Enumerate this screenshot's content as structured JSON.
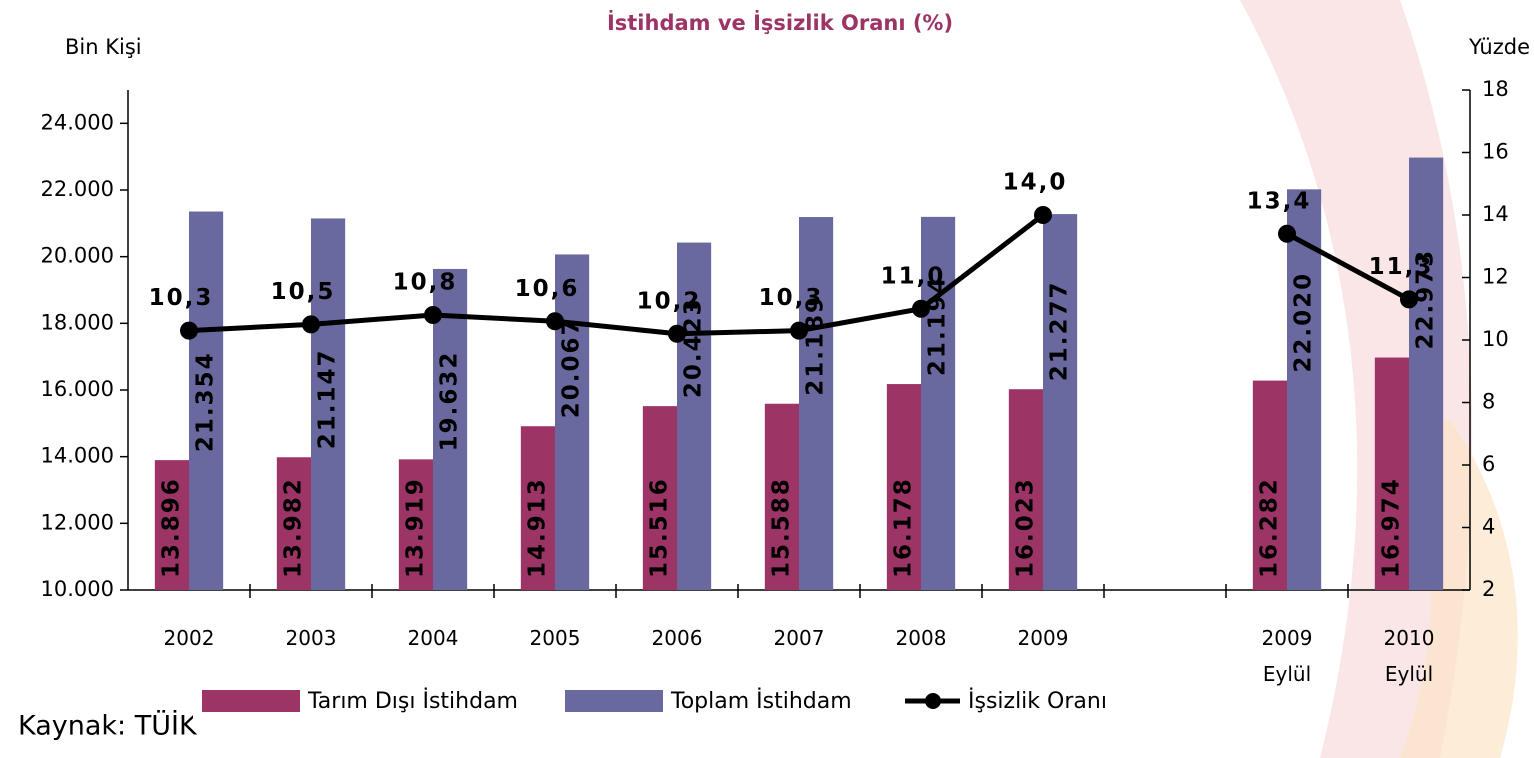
{
  "chart_data": {
    "type": "bar",
    "title": "İstihdam ve İşsizlik Oranı (%)",
    "y_label": "Bin Kişi",
    "y2_label": "Yüzde",
    "source": "Kaynak: TÜİK",
    "categories": [
      "2002",
      "2003",
      "2004",
      "2005",
      "2006",
      "2007",
      "2008",
      "2009",
      null,
      "2009\nEylül",
      "2010\nEylül"
    ],
    "series": [
      {
        "name": "Tarım Dışı İstihdam",
        "type": "bar",
        "color": "#9c3466",
        "values": [
          13896,
          13982,
          13919,
          14913,
          15516,
          15588,
          16178,
          16023,
          null,
          16282,
          16974
        ],
        "value_labels": [
          "13.896",
          "13.982",
          "13.919",
          "14.913",
          "15.516",
          "15.588",
          "16.178",
          "16.023",
          null,
          "16.282",
          "16.974"
        ]
      },
      {
        "name": "Toplam İstihdam",
        "type": "bar",
        "color": "#6a699f",
        "values": [
          21354,
          21147,
          19632,
          20067,
          20423,
          21189,
          21194,
          21277,
          null,
          22020,
          22973
        ],
        "value_labels": [
          "21.354",
          "21.147",
          "19.632",
          "20.067",
          "20.423",
          "21.189",
          "21.194",
          "21.277",
          null,
          "22.020",
          "22.973"
        ]
      },
      {
        "name": "İşsizlik Oranı",
        "type": "line",
        "axis": "y2",
        "color": "#000000",
        "values": [
          10.3,
          10.5,
          10.8,
          10.6,
          10.2,
          10.3,
          11.0,
          14.0,
          null,
          13.4,
          11.3
        ],
        "value_labels": [
          "10,3",
          "10,5",
          "10,8",
          "10,6",
          "10,2",
          "10,3",
          "11,0",
          "14,0",
          null,
          "13,4",
          "11,3"
        ]
      }
    ],
    "ylim": [
      10000,
      25000
    ],
    "yticks": [
      {
        "value": 10000,
        "label": "10.000"
      },
      {
        "value": 12000,
        "label": "12.000"
      },
      {
        "value": 14000,
        "label": "14.000"
      },
      {
        "value": 16000,
        "label": "16.000"
      },
      {
        "value": 18000,
        "label": "18.000"
      },
      {
        "value": 20000,
        "label": "20.000"
      },
      {
        "value": 22000,
        "label": "22.000"
      },
      {
        "value": 24000,
        "label": "24.000"
      }
    ],
    "y2lim": [
      2,
      18
    ],
    "y2ticks": [
      2,
      4,
      6,
      8,
      10,
      12,
      14,
      16,
      18
    ],
    "legend": "bottom-left"
  }
}
